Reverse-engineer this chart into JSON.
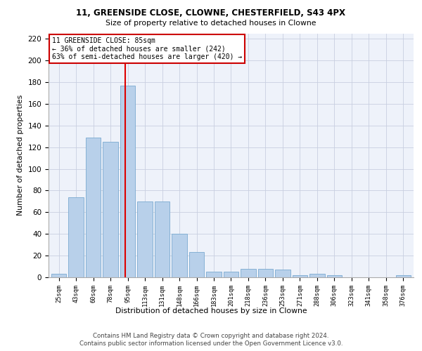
{
  "title_line1": "11, GREENSIDE CLOSE, CLOWNE, CHESTERFIELD, S43 4PX",
  "title_line2": "Size of property relative to detached houses in Clowne",
  "xlabel": "Distribution of detached houses by size in Clowne",
  "ylabel": "Number of detached properties",
  "categories": [
    "25sqm",
    "43sqm",
    "60sqm",
    "78sqm",
    "95sqm",
    "113sqm",
    "131sqm",
    "148sqm",
    "166sqm",
    "183sqm",
    "201sqm",
    "218sqm",
    "236sqm",
    "253sqm",
    "271sqm",
    "288sqm",
    "306sqm",
    "323sqm",
    "341sqm",
    "358sqm",
    "376sqm"
  ],
  "values": [
    3,
    74,
    129,
    125,
    177,
    70,
    70,
    40,
    23,
    5,
    5,
    8,
    8,
    7,
    2,
    3,
    2,
    0,
    0,
    0,
    2
  ],
  "bar_color": "#b8d0ea",
  "bar_edge_color": "#7aaad0",
  "red_line_x": 3.85,
  "annotation_text": "11 GREENSIDE CLOSE: 85sqm\n← 36% of detached houses are smaller (242)\n63% of semi-detached houses are larger (420) →",
  "annotation_box_color": "#ffffff",
  "annotation_box_edge": "#cc0000",
  "ylim": [
    0,
    225
  ],
  "yticks": [
    0,
    20,
    40,
    60,
    80,
    100,
    120,
    140,
    160,
    180,
    200,
    220
  ],
  "footer_line1": "Contains HM Land Registry data © Crown copyright and database right 2024.",
  "footer_line2": "Contains public sector information licensed under the Open Government Licence v3.0.",
  "bg_color": "#eef2fa",
  "grid_color": "#c8cfe0"
}
